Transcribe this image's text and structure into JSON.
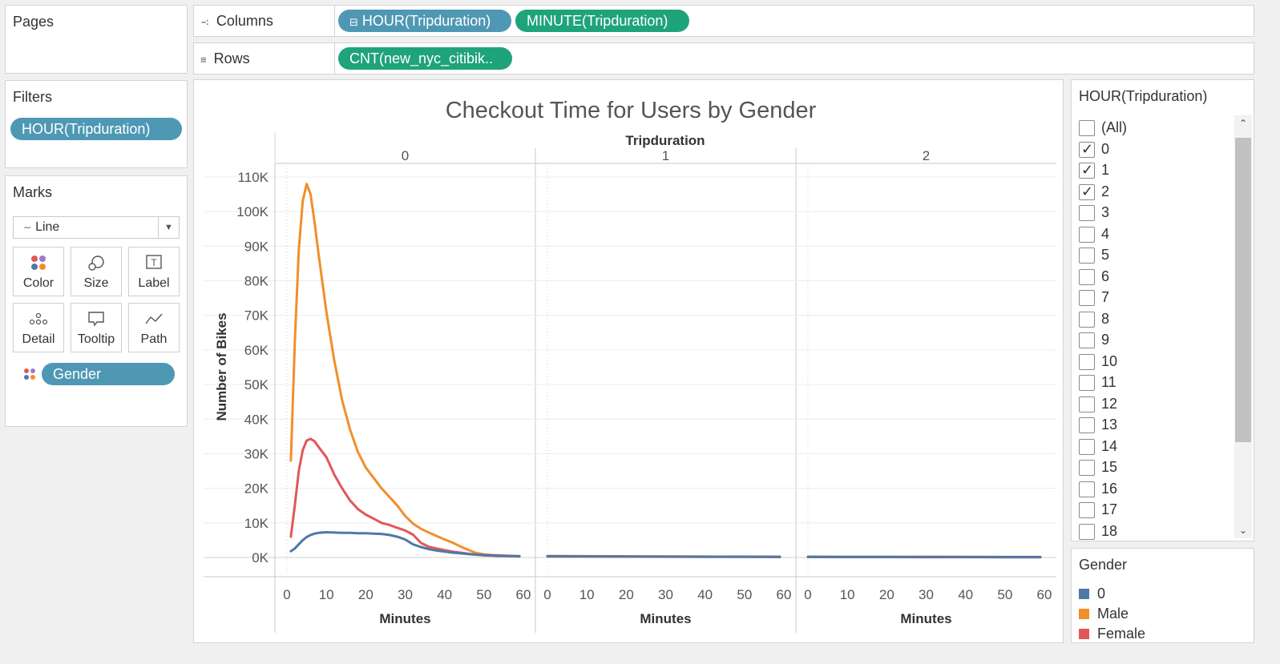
{
  "pages": {
    "title": "Pages"
  },
  "columns": {
    "label": "Columns",
    "pills": [
      "HOUR(Tripduration)",
      "MINUTE(Tripduration)"
    ]
  },
  "rows": {
    "label": "Rows",
    "pills": [
      "CNT(new_nyc_citibik.."
    ]
  },
  "filters": {
    "title": "Filters",
    "pills": [
      "HOUR(Tripduration)"
    ]
  },
  "marks": {
    "title": "Marks",
    "mark_type": "Line",
    "buttons": [
      "Color",
      "Size",
      "Label",
      "Detail",
      "Tooltip",
      "Path"
    ],
    "field": "Gender"
  },
  "hour_filter": {
    "title": "HOUR(Tripduration)",
    "items": [
      {
        "label": "(All)",
        "checked": false
      },
      {
        "label": "0",
        "checked": true
      },
      {
        "label": "1",
        "checked": true
      },
      {
        "label": "2",
        "checked": true
      },
      {
        "label": "3",
        "checked": false
      },
      {
        "label": "4",
        "checked": false
      },
      {
        "label": "5",
        "checked": false
      },
      {
        "label": "6",
        "checked": false
      },
      {
        "label": "7",
        "checked": false
      },
      {
        "label": "8",
        "checked": false
      },
      {
        "label": "9",
        "checked": false
      },
      {
        "label": "10",
        "checked": false
      },
      {
        "label": "11",
        "checked": false
      },
      {
        "label": "12",
        "checked": false
      },
      {
        "label": "13",
        "checked": false
      },
      {
        "label": "14",
        "checked": false
      },
      {
        "label": "15",
        "checked": false
      },
      {
        "label": "16",
        "checked": false
      },
      {
        "label": "17",
        "checked": false
      },
      {
        "label": "18",
        "checked": false
      }
    ]
  },
  "gender_legend": {
    "title": "Gender",
    "items": [
      {
        "label": "0",
        "color": "#4e79a7"
      },
      {
        "label": "Male",
        "color": "#f28e2b"
      },
      {
        "label": "Female",
        "color": "#e15759"
      }
    ]
  },
  "chart_data": {
    "type": "line",
    "title": "Checkout Time for Users by Gender",
    "column_header": "Tripduration",
    "panes": [
      "0",
      "1",
      "2"
    ],
    "xlabel": "Minutes",
    "ylabel": "Number of Bikes",
    "xlim": [
      0,
      60
    ],
    "xticks": [
      0,
      10,
      20,
      30,
      40,
      50,
      60
    ],
    "ylim": [
      0,
      110000
    ],
    "yticks": [
      0,
      10000,
      20000,
      30000,
      40000,
      50000,
      60000,
      70000,
      80000,
      90000,
      100000,
      110000
    ],
    "ytick_labels": [
      "0K",
      "10K",
      "20K",
      "30K",
      "40K",
      "50K",
      "60K",
      "70K",
      "80K",
      "90K",
      "100K",
      "110K"
    ],
    "grid": true,
    "series": [
      {
        "name": "Male",
        "color": "#f28e2b",
        "panes": [
          {
            "x": [
              1,
              2,
              3,
              4,
              5,
              6,
              7,
              8,
              10,
              12,
              14,
              16,
              18,
              20,
              22,
              24,
              26,
              28,
              30,
              32,
              34,
              36,
              38,
              40,
              42,
              44,
              46,
              48,
              50,
              52,
              54,
              56,
              58,
              59
            ],
            "y": [
              28000,
              62000,
              89000,
              103000,
              108000,
              105000,
              97000,
              88000,
              71000,
              57000,
              45500,
              37000,
              30500,
              26000,
              23000,
              20000,
              17500,
              15000,
              12000,
              9800,
              8300,
              7200,
              6200,
              5200,
              4300,
              3200,
              2200,
              1300,
              900,
              700,
              600,
              500,
              450,
              400
            ]
          },
          {
            "x": [
              0,
              10,
              20,
              30,
              40,
              50,
              59
            ],
            "y": [
              450,
              380,
              330,
              290,
              250,
              210,
              180
            ]
          },
          {
            "x": [
              0,
              10,
              20,
              30,
              40,
              50,
              59
            ],
            "y": [
              170,
              150,
              140,
              130,
              120,
              110,
              100
            ]
          }
        ]
      },
      {
        "name": "Female",
        "color": "#e15759",
        "panes": [
          {
            "x": [
              1,
              2,
              3,
              4,
              5,
              6,
              7,
              8,
              10,
              12,
              14,
              16,
              18,
              20,
              22,
              24,
              26,
              28,
              30,
              32,
              34,
              36,
              38,
              40,
              42,
              44,
              46,
              48,
              50,
              52,
              54,
              56,
              58,
              59
            ],
            "y": [
              6000,
              15000,
              25000,
              31000,
              33800,
              34300,
              33600,
              32000,
              29000,
              24000,
              20000,
              16500,
              14000,
              12400,
              11200,
              10000,
              9400,
              8600,
              7800,
              6600,
              4200,
              3100,
              2600,
              2100,
              1700,
              1400,
              1100,
              800,
              600,
              500,
              450,
              400,
              350,
              300
            ]
          },
          {
            "x": [
              0,
              10,
              20,
              30,
              40,
              50,
              59
            ],
            "y": [
              300,
              260,
              230,
              200,
              180,
              160,
              140
            ]
          },
          {
            "x": [
              0,
              10,
              20,
              30,
              40,
              50,
              59
            ],
            "y": [
              130,
              120,
              110,
              100,
              90,
              80,
              70
            ]
          }
        ]
      },
      {
        "name": "0",
        "color": "#4e79a7",
        "panes": [
          {
            "x": [
              1,
              2,
              3,
              4,
              5,
              6,
              7,
              8,
              10,
              12,
              14,
              16,
              18,
              20,
              22,
              24,
              26,
              28,
              30,
              32,
              34,
              36,
              38,
              40,
              42,
              44,
              46,
              48,
              50,
              52,
              54,
              56,
              58,
              59
            ],
            "y": [
              1800,
              2600,
              3800,
              5000,
              5900,
              6500,
              6900,
              7100,
              7300,
              7200,
              7100,
              7100,
              7000,
              7000,
              6900,
              6800,
              6500,
              6000,
              5200,
              3800,
              3000,
              2400,
              2000,
              1700,
              1400,
              1200,
              1000,
              800,
              700,
              600,
              500,
              450,
              400,
              350
            ]
          },
          {
            "x": [
              0,
              10,
              20,
              30,
              40,
              50,
              59
            ],
            "y": [
              350,
              320,
              290,
              260,
              240,
              220,
              200
            ]
          },
          {
            "x": [
              0,
              10,
              20,
              30,
              40,
              50,
              59
            ],
            "y": [
              200,
              190,
              180,
              170,
              160,
              150,
              140
            ]
          }
        ]
      }
    ]
  }
}
